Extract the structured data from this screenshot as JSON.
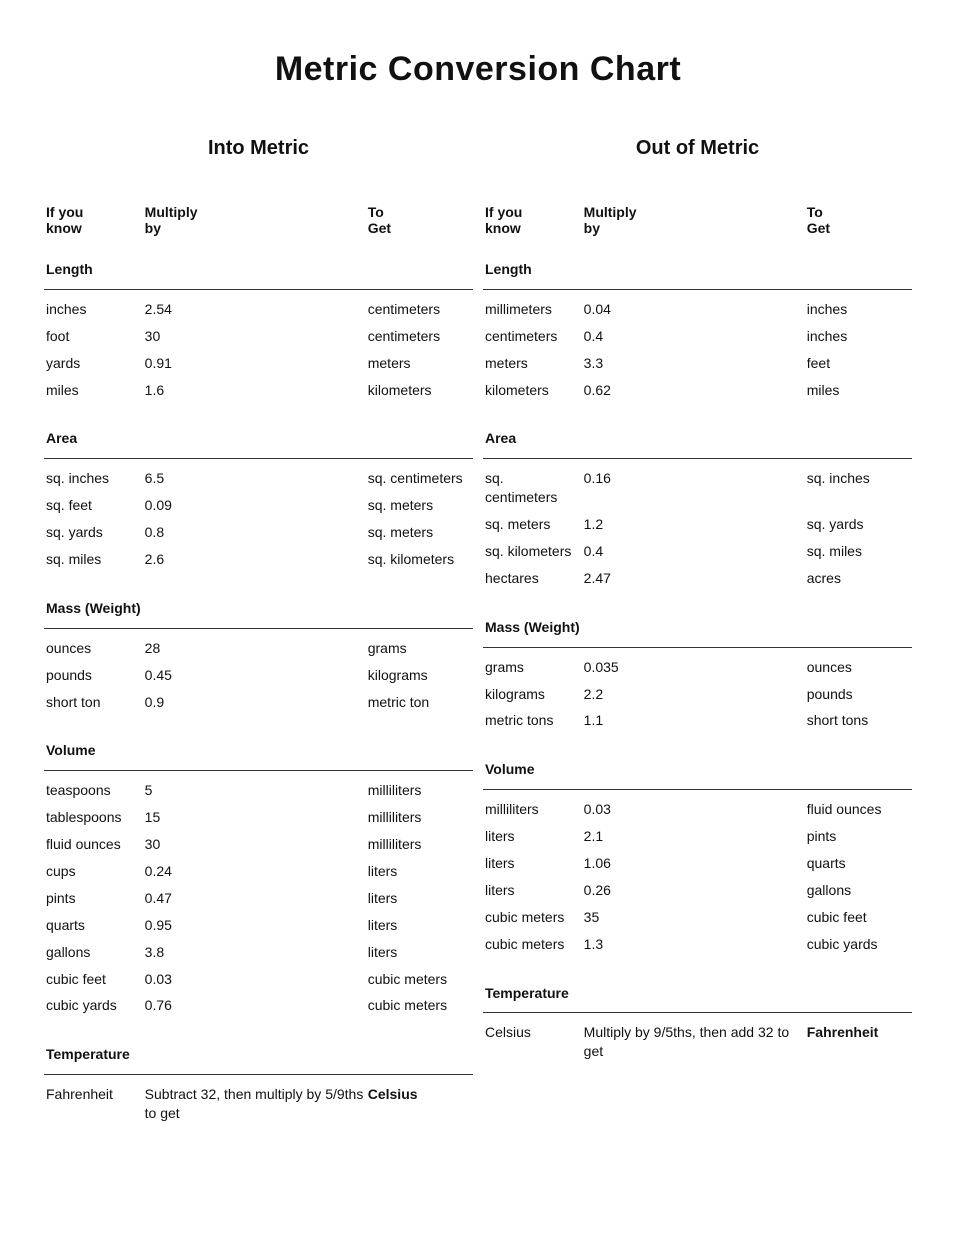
{
  "title": "Metric Conversion Chart",
  "headers": {
    "know": "If you know",
    "mult": "Multiply by",
    "get": "To Get"
  },
  "left": {
    "title": "Into Metric",
    "sections": [
      {
        "name": "Length",
        "rows": [
          {
            "know": "inches",
            "mult": "2.54",
            "get": "centimeters"
          },
          {
            "know": "foot",
            "mult": "30",
            "get": "centimeters"
          },
          {
            "know": "yards",
            "mult": "0.91",
            "get": "meters"
          },
          {
            "know": "miles",
            "mult": "1.6",
            "get": "kilometers"
          }
        ]
      },
      {
        "name": "Area",
        "rows": [
          {
            "know": "sq. inches",
            "mult": "6.5",
            "get": "sq. centimeters"
          },
          {
            "know": "sq. feet",
            "mult": "0.09",
            "get": "sq. meters"
          },
          {
            "know": "sq. yards",
            "mult": "0.8",
            "get": "sq. meters"
          },
          {
            "know": "sq. miles",
            "mult": "2.6",
            "get": "sq. kilometers"
          }
        ]
      },
      {
        "name": "Mass (Weight)",
        "rows": [
          {
            "know": "ounces",
            "mult": "28",
            "get": "grams"
          },
          {
            "know": "pounds",
            "mult": "0.45",
            "get": "kilograms"
          },
          {
            "know": "short ton",
            "mult": "0.9",
            "get": "metric ton"
          }
        ]
      },
      {
        "name": "Volume",
        "rows": [
          {
            "know": "teaspoons",
            "mult": "5",
            "get": "milliliters"
          },
          {
            "know": "tablespoons",
            "mult": "15",
            "get": "milliliters"
          },
          {
            "know": "fluid ounces",
            "mult": "30",
            "get": "milliliters"
          },
          {
            "know": "cups",
            "mult": "0.24",
            "get": "liters"
          },
          {
            "know": "pints",
            "mult": "0.47",
            "get": "liters"
          },
          {
            "know": "quarts",
            "mult": "0.95",
            "get": "liters"
          },
          {
            "know": "gallons",
            "mult": "3.8",
            "get": "liters"
          },
          {
            "know": "cubic feet",
            "mult": "0.03",
            "get": "cubic meters"
          },
          {
            "know": "cubic yards",
            "mult": "0.76",
            "get": "cubic meters"
          }
        ]
      },
      {
        "name": "Temperature",
        "rows": [
          {
            "know": "Fahrenheit",
            "mult": "Subtract 32, then multiply by 5/9ths to get",
            "get": "Celsius"
          }
        ]
      }
    ]
  },
  "right": {
    "title": "Out of Metric",
    "sections": [
      {
        "name": "Length",
        "rows": [
          {
            "know": "millimeters",
            "mult": "0.04",
            "get": "inches"
          },
          {
            "know": "centimeters",
            "mult": "0.4",
            "get": "inches"
          },
          {
            "know": "meters",
            "mult": "3.3",
            "get": "feet"
          },
          {
            "know": "kilometers",
            "mult": "0.62",
            "get": "miles"
          }
        ]
      },
      {
        "name": "Area",
        "rows": [
          {
            "know": "sq. centimeters",
            "mult": "0.16",
            "get": "sq. inches"
          },
          {
            "know": "sq. meters",
            "mult": "1.2",
            "get": "sq. yards"
          },
          {
            "know": "sq. kilometers",
            "mult": "0.4",
            "get": "sq. miles"
          },
          {
            "know": "hectares",
            "mult": "2.47",
            "get": "acres"
          }
        ]
      },
      {
        "name": "Mass (Weight)",
        "rows": [
          {
            "know": "grams",
            "mult": "0.035",
            "get": "ounces"
          },
          {
            "know": "kilograms",
            "mult": "2.2",
            "get": "pounds"
          },
          {
            "know": "metric tons",
            "mult": "1.1",
            "get": "short tons"
          }
        ]
      },
      {
        "name": "Volume",
        "rows": [
          {
            "know": "milliliters",
            "mult": "0.03",
            "get": "fluid ounces"
          },
          {
            "know": "liters",
            "mult": "2.1",
            "get": "pints"
          },
          {
            "know": "liters",
            "mult": "1.06",
            "get": "quarts"
          },
          {
            "know": "liters",
            "mult": "0.26",
            "get": "gallons"
          },
          {
            "know": "cubic meters",
            "mult": "35",
            "get": "cubic feet"
          },
          {
            "know": "cubic meters",
            "mult": "1.3",
            "get": "cubic yards"
          }
        ]
      },
      {
        "name": "Temperature",
        "rows": [
          {
            "know": "Celsius",
            "mult": "Multiply by 9/5ths, then add 32 to get",
            "get": "Fahrenheit"
          }
        ]
      }
    ]
  }
}
